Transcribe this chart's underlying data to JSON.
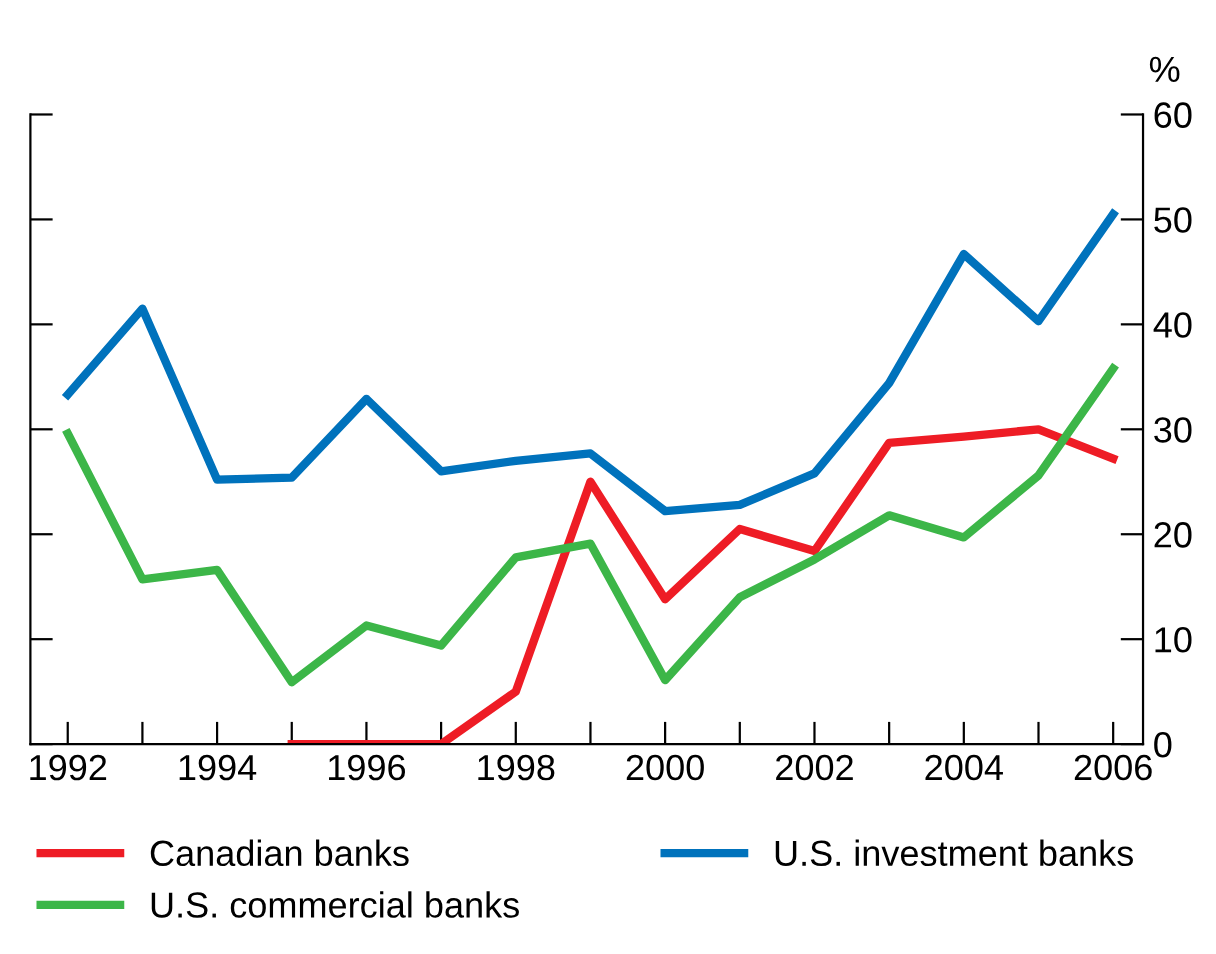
{
  "chart_data": {
    "type": "line",
    "ylabel": "%",
    "x": [
      1992,
      1993,
      1994,
      1995,
      1996,
      1997,
      1998,
      1999,
      2000,
      2001,
      2002,
      2003,
      2004,
      2005,
      2006
    ],
    "series": [
      {
        "name": "Canadian banks",
        "color": "#ee1c25",
        "values": [
          null,
          null,
          null,
          0,
          0,
          0,
          5,
          25,
          13.8,
          20.5,
          18.4,
          28.7,
          29.3,
          30,
          27.2
        ]
      },
      {
        "name": "U.S. commercial banks",
        "color": "#3cb648",
        "values": [
          29.6,
          15.7,
          16.6,
          5.9,
          11.3,
          9.4,
          17.8,
          19.1,
          6.1,
          14,
          17.6,
          21.8,
          19.7,
          25.6,
          35.8
        ]
      },
      {
        "name": "U.S. investment banks",
        "color": "#0072bc",
        "values": [
          33.3,
          41.5,
          25.2,
          25.4,
          32.9,
          26,
          27,
          27.7,
          22.2,
          22.8,
          25.8,
          34.4,
          46.7,
          40.3,
          50.5
        ]
      }
    ],
    "xlim": [
      1991.5,
      2006.4
    ],
    "ylim": [
      0,
      60
    ],
    "yticks": [
      0,
      10,
      20,
      30,
      40,
      50,
      60
    ],
    "xticks": [
      1992,
      {
        "value": 1993,
        "label": null
      },
      1994,
      {
        "value": 1995,
        "label": null
      },
      1996,
      {
        "value": 1997,
        "label": null
      },
      1998,
      {
        "value": 1999,
        "label": null
      },
      2000,
      {
        "value": 2001,
        "label": null
      },
      2002,
      {
        "value": 2003,
        "label": null
      },
      2004,
      {
        "value": 2005,
        "label": null
      },
      2006
    ],
    "grid": false,
    "legend": "bottom",
    "marker": "none",
    "line_style": "solid"
  }
}
